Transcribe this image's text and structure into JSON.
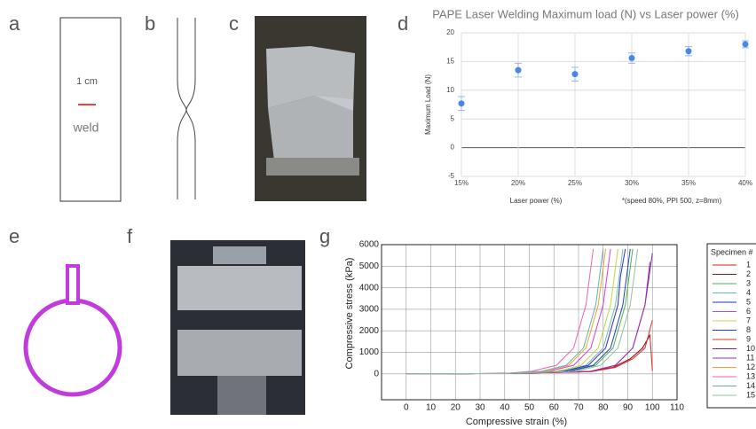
{
  "panels": {
    "labels": [
      "a",
      "b",
      "c",
      "d",
      "e",
      "f",
      "g"
    ],
    "scale_text": "1 cm",
    "weld_text": "weld"
  },
  "chart_data": [
    {
      "type": "scatter",
      "title": "PAPE Laser Welding Maximum load (N) vs Laser power (%)",
      "x_label": "Laser power (%)",
      "y_label": "Maximum Load (N)",
      "note": "*(speed 80%, PPI 500, z=8mm)",
      "categories": [
        "15%",
        "20%",
        "25%",
        "30%",
        "35%",
        "40%"
      ],
      "values": [
        7.7,
        13.5,
        12.8,
        15.6,
        16.8,
        18.0
      ],
      "errors": [
        1.2,
        1.2,
        1.2,
        0.9,
        0.8,
        0.6
      ],
      "color": "#4a86e8",
      "ylim": [
        -5,
        20
      ],
      "yticks": [
        -5,
        0,
        5,
        10,
        15,
        20
      ],
      "grid": true
    },
    {
      "type": "line",
      "x_label": "Compressive strain (%)",
      "y_label": "Compressive stress (kPa)",
      "legend_title": "Specimen #",
      "legend": "right",
      "grid": true,
      "xlim": [
        -10,
        110
      ],
      "xticks": [
        0,
        10,
        20,
        30,
        40,
        50,
        60,
        70,
        80,
        90,
        100,
        110
      ],
      "ylim": [
        -1200,
        6000
      ],
      "yticks": [
        0,
        1000,
        2000,
        3000,
        4000,
        5000,
        6000
      ],
      "series": [
        {
          "name": "1",
          "color": "#e31a1c",
          "x": [
            0,
            40,
            74,
            84,
            91,
            96,
            99,
            100
          ],
          "values": [
            0,
            20,
            100,
            300,
            700,
            1200,
            1800,
            150
          ]
        },
        {
          "name": "2",
          "color": "#8b1a1a",
          "x": [
            0,
            40,
            74,
            84,
            91,
            96,
            99
          ],
          "values": [
            0,
            20,
            100,
            300,
            700,
            1200,
            1800
          ]
        },
        {
          "name": "3",
          "color": "#4daf4a",
          "x": [
            0,
            40,
            67,
            77,
            84,
            89,
            92
          ],
          "values": [
            0,
            20,
            120,
            400,
            1200,
            3200,
            5800
          ]
        },
        {
          "name": "4",
          "color": "#66c2a5",
          "x": [
            0,
            40,
            63,
            73,
            80,
            85,
            88
          ],
          "values": [
            0,
            20,
            120,
            400,
            1200,
            3200,
            5800
          ]
        },
        {
          "name": "5",
          "color": "#2b2bd1",
          "x": [
            0,
            40,
            64,
            74,
            81,
            86,
            87,
            89
          ],
          "values": [
            0,
            20,
            120,
            400,
            1200,
            3200,
            4500,
            5800
          ]
        },
        {
          "name": "6",
          "color": "#d43fd4",
          "x": [
            0,
            40,
            58,
            68,
            75,
            80,
            83
          ],
          "values": [
            0,
            20,
            120,
            400,
            1200,
            3200,
            5800
          ]
        },
        {
          "name": "7",
          "color": "#c0d840",
          "x": [
            0,
            40,
            61,
            71,
            78,
            83,
            86
          ],
          "values": [
            0,
            20,
            120,
            400,
            1200,
            3200,
            5800
          ]
        },
        {
          "name": "8",
          "color": "#1f3fb0",
          "x": [
            0,
            40,
            66,
            76,
            83,
            88,
            91
          ],
          "values": [
            0,
            20,
            120,
            400,
            1200,
            3200,
            5800
          ]
        },
        {
          "name": "9",
          "color": "#e0302a",
          "x": [
            0,
            40,
            75,
            85,
            92,
            97,
            100
          ],
          "values": [
            0,
            20,
            100,
            300,
            700,
            1200,
            2500
          ]
        },
        {
          "name": "10",
          "color": "#7a1f9c",
          "x": [
            0,
            40,
            75,
            85,
            92,
            97,
            100
          ],
          "values": [
            0,
            20,
            120,
            400,
            1200,
            3200,
            5600
          ]
        },
        {
          "name": "11",
          "color": "#a02cb0",
          "x": [
            0,
            40,
            75,
            85,
            92,
            97,
            99
          ],
          "values": [
            0,
            20,
            120,
            400,
            1200,
            3200,
            5200
          ]
        },
        {
          "name": "12",
          "color": "#f0a030",
          "x": [
            0,
            40,
            56,
            66,
            73,
            78,
            81
          ],
          "values": [
            0,
            20,
            120,
            400,
            1200,
            3200,
            5800
          ]
        },
        {
          "name": "13",
          "color": "#f060b0",
          "x": [
            0,
            40,
            51,
            61,
            68,
            73,
            76
          ],
          "values": [
            0,
            20,
            120,
            400,
            1200,
            3200,
            5800
          ]
        },
        {
          "name": "14",
          "color": "#60b0b0",
          "x": [
            0,
            40,
            55,
            65,
            72,
            77,
            80
          ],
          "values": [
            0,
            20,
            120,
            400,
            1200,
            3200,
            5800
          ]
        },
        {
          "name": "15",
          "color": "#90c0a0",
          "x": [
            0,
            40,
            69,
            79,
            86,
            91,
            94
          ],
          "values": [
            0,
            20,
            120,
            400,
            1200,
            3200,
            5800
          ]
        }
      ]
    }
  ]
}
